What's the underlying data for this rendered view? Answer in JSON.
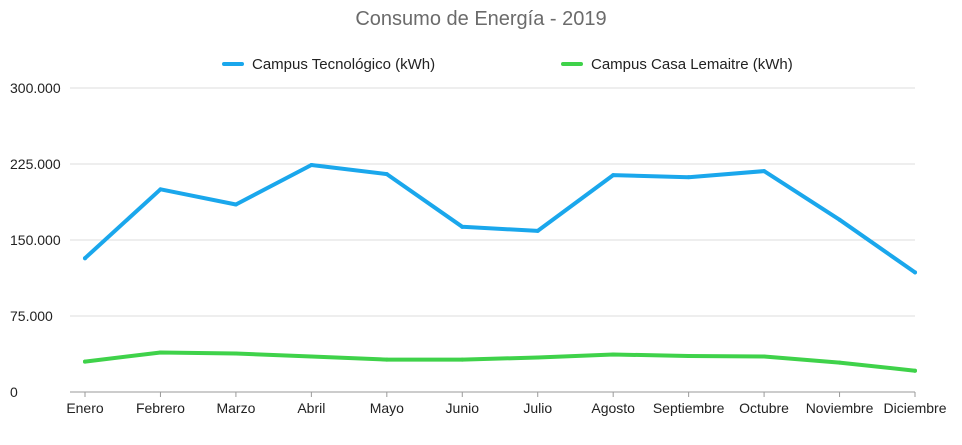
{
  "chart_data": {
    "type": "line",
    "title": "Consumo de Energía - 2019",
    "xlabel": "",
    "ylabel": "",
    "categories": [
      "Enero",
      "Febrero",
      "Marzo",
      "Abril",
      "Mayo",
      "Junio",
      "Julio",
      "Agosto",
      "Septiembre",
      "Octubre",
      "Noviembre",
      "Diciembre"
    ],
    "ylim": [
      0,
      300000
    ],
    "yticks": [
      0,
      75000,
      150000,
      225000,
      300000
    ],
    "ytick_labels": [
      "0",
      "75.000",
      "150.000",
      "225.000",
      "300.000"
    ],
    "grid": true,
    "legend_position": "top-center",
    "series": [
      {
        "name": "Campus Tecnológico (kWh)",
        "color": "#1aa7ec",
        "values": [
          132000,
          200000,
          185000,
          224000,
          215000,
          163000,
          159000,
          214000,
          212000,
          218000,
          170000,
          118000
        ]
      },
      {
        "name": "Campus Casa Lemaitre (kWh)",
        "color": "#3fd24a",
        "values": [
          30000,
          39000,
          38000,
          35000,
          32000,
          32000,
          34000,
          37000,
          35500,
          35000,
          29000,
          21000
        ]
      }
    ]
  }
}
